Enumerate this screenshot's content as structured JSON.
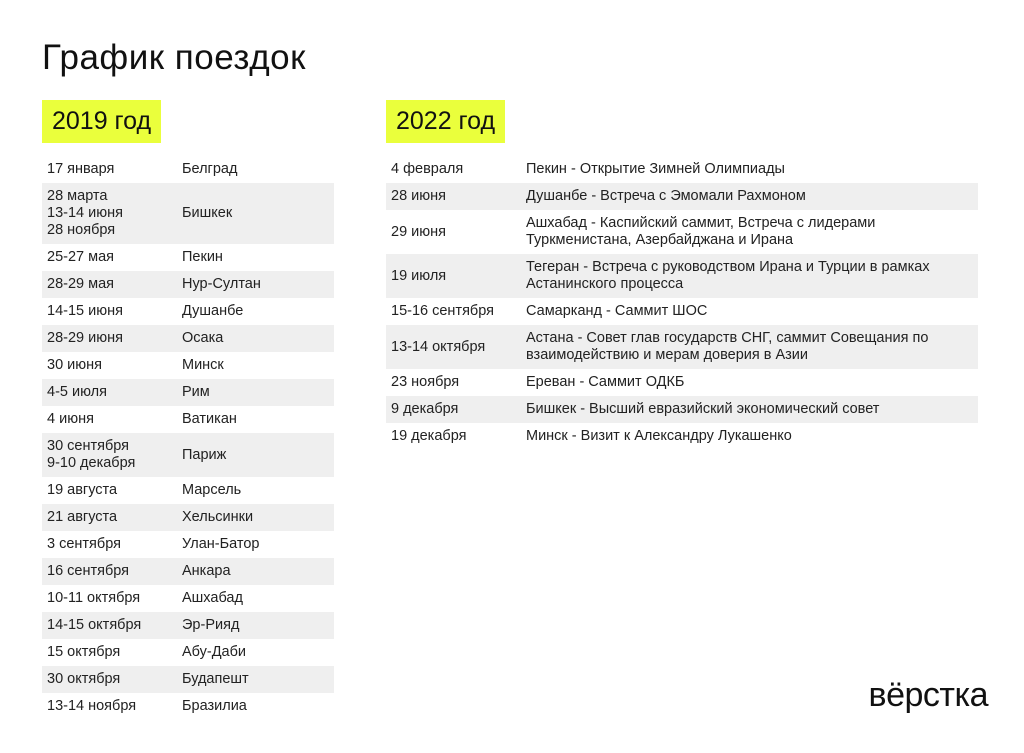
{
  "title": "График поездок",
  "accent": "#eaff3c",
  "y2019": {
    "label": "2019 год",
    "rows": [
      {
        "date": "17 января",
        "place": "Белград"
      },
      {
        "date": "28 марта\n13-14 июня\n28 ноября",
        "place": "Бишкек"
      },
      {
        "date": "25-27 мая",
        "place": "Пекин"
      },
      {
        "date": "28-29 мая",
        "place": "Нур-Султан"
      },
      {
        "date": "14-15 июня",
        "place": "Душанбе"
      },
      {
        "date": "28-29 июня",
        "place": "Осака"
      },
      {
        "date": "30 июня",
        "place": "Минск"
      },
      {
        "date": "4-5 июля",
        "place": "Рим"
      },
      {
        "date": "4 июня",
        "place": "Ватикан"
      },
      {
        "date": "30 сентября\n9-10 декабря",
        "place": "Париж"
      },
      {
        "date": "19 августа",
        "place": "Марсель"
      },
      {
        "date": "21 августа",
        "place": "Хельсинки"
      },
      {
        "date": "3 сентября",
        "place": "Улан-Батор"
      },
      {
        "date": "16 сентября",
        "place": "Анкара"
      },
      {
        "date": "10-11 октября",
        "place": "Ашхабад"
      },
      {
        "date": "14-15 октября",
        "place": "Эр-Рияд"
      },
      {
        "date": "15 октября",
        "place": "Абу-Даби"
      },
      {
        "date": "30 октября",
        "place": "Будапешт"
      },
      {
        "date": "13-14 ноября",
        "place": "Бразилиа"
      }
    ]
  },
  "y2022": {
    "label": "2022 год",
    "rows": [
      {
        "date": "4 февраля",
        "place": "Пекин - Открытие Зимней Олимпиады"
      },
      {
        "date": "28 июня",
        "place": "Душанбе - Встреча с Эмомали Рахмоном"
      },
      {
        "date": "29 июня",
        "place": "Ашхабад - Каспийский саммит, Встреча с лидерами Туркменистана, Азербайджана и Ирана"
      },
      {
        "date": "19 июля",
        "place": "Тегеран - Встреча с руководством Ирана и Турции в рамках Астанинского процесса"
      },
      {
        "date": "15-16 сентября",
        "place": "Самарканд - Саммит ШОС"
      },
      {
        "date": "13-14 октября",
        "place": "Астана - Совет глав государств СНГ, саммит Совещания по взаимодействию и мерам доверия в Азии"
      },
      {
        "date": "23 ноября",
        "place": "Ереван - Саммит ОДКБ"
      },
      {
        "date": "9 декабря",
        "place": "Бишкек - Высший евразийский экономический совет"
      },
      {
        "date": "19 декабря",
        "place": "Минск - Визит к Александру Лукашенко"
      }
    ]
  },
  "logo": "вёрстка"
}
